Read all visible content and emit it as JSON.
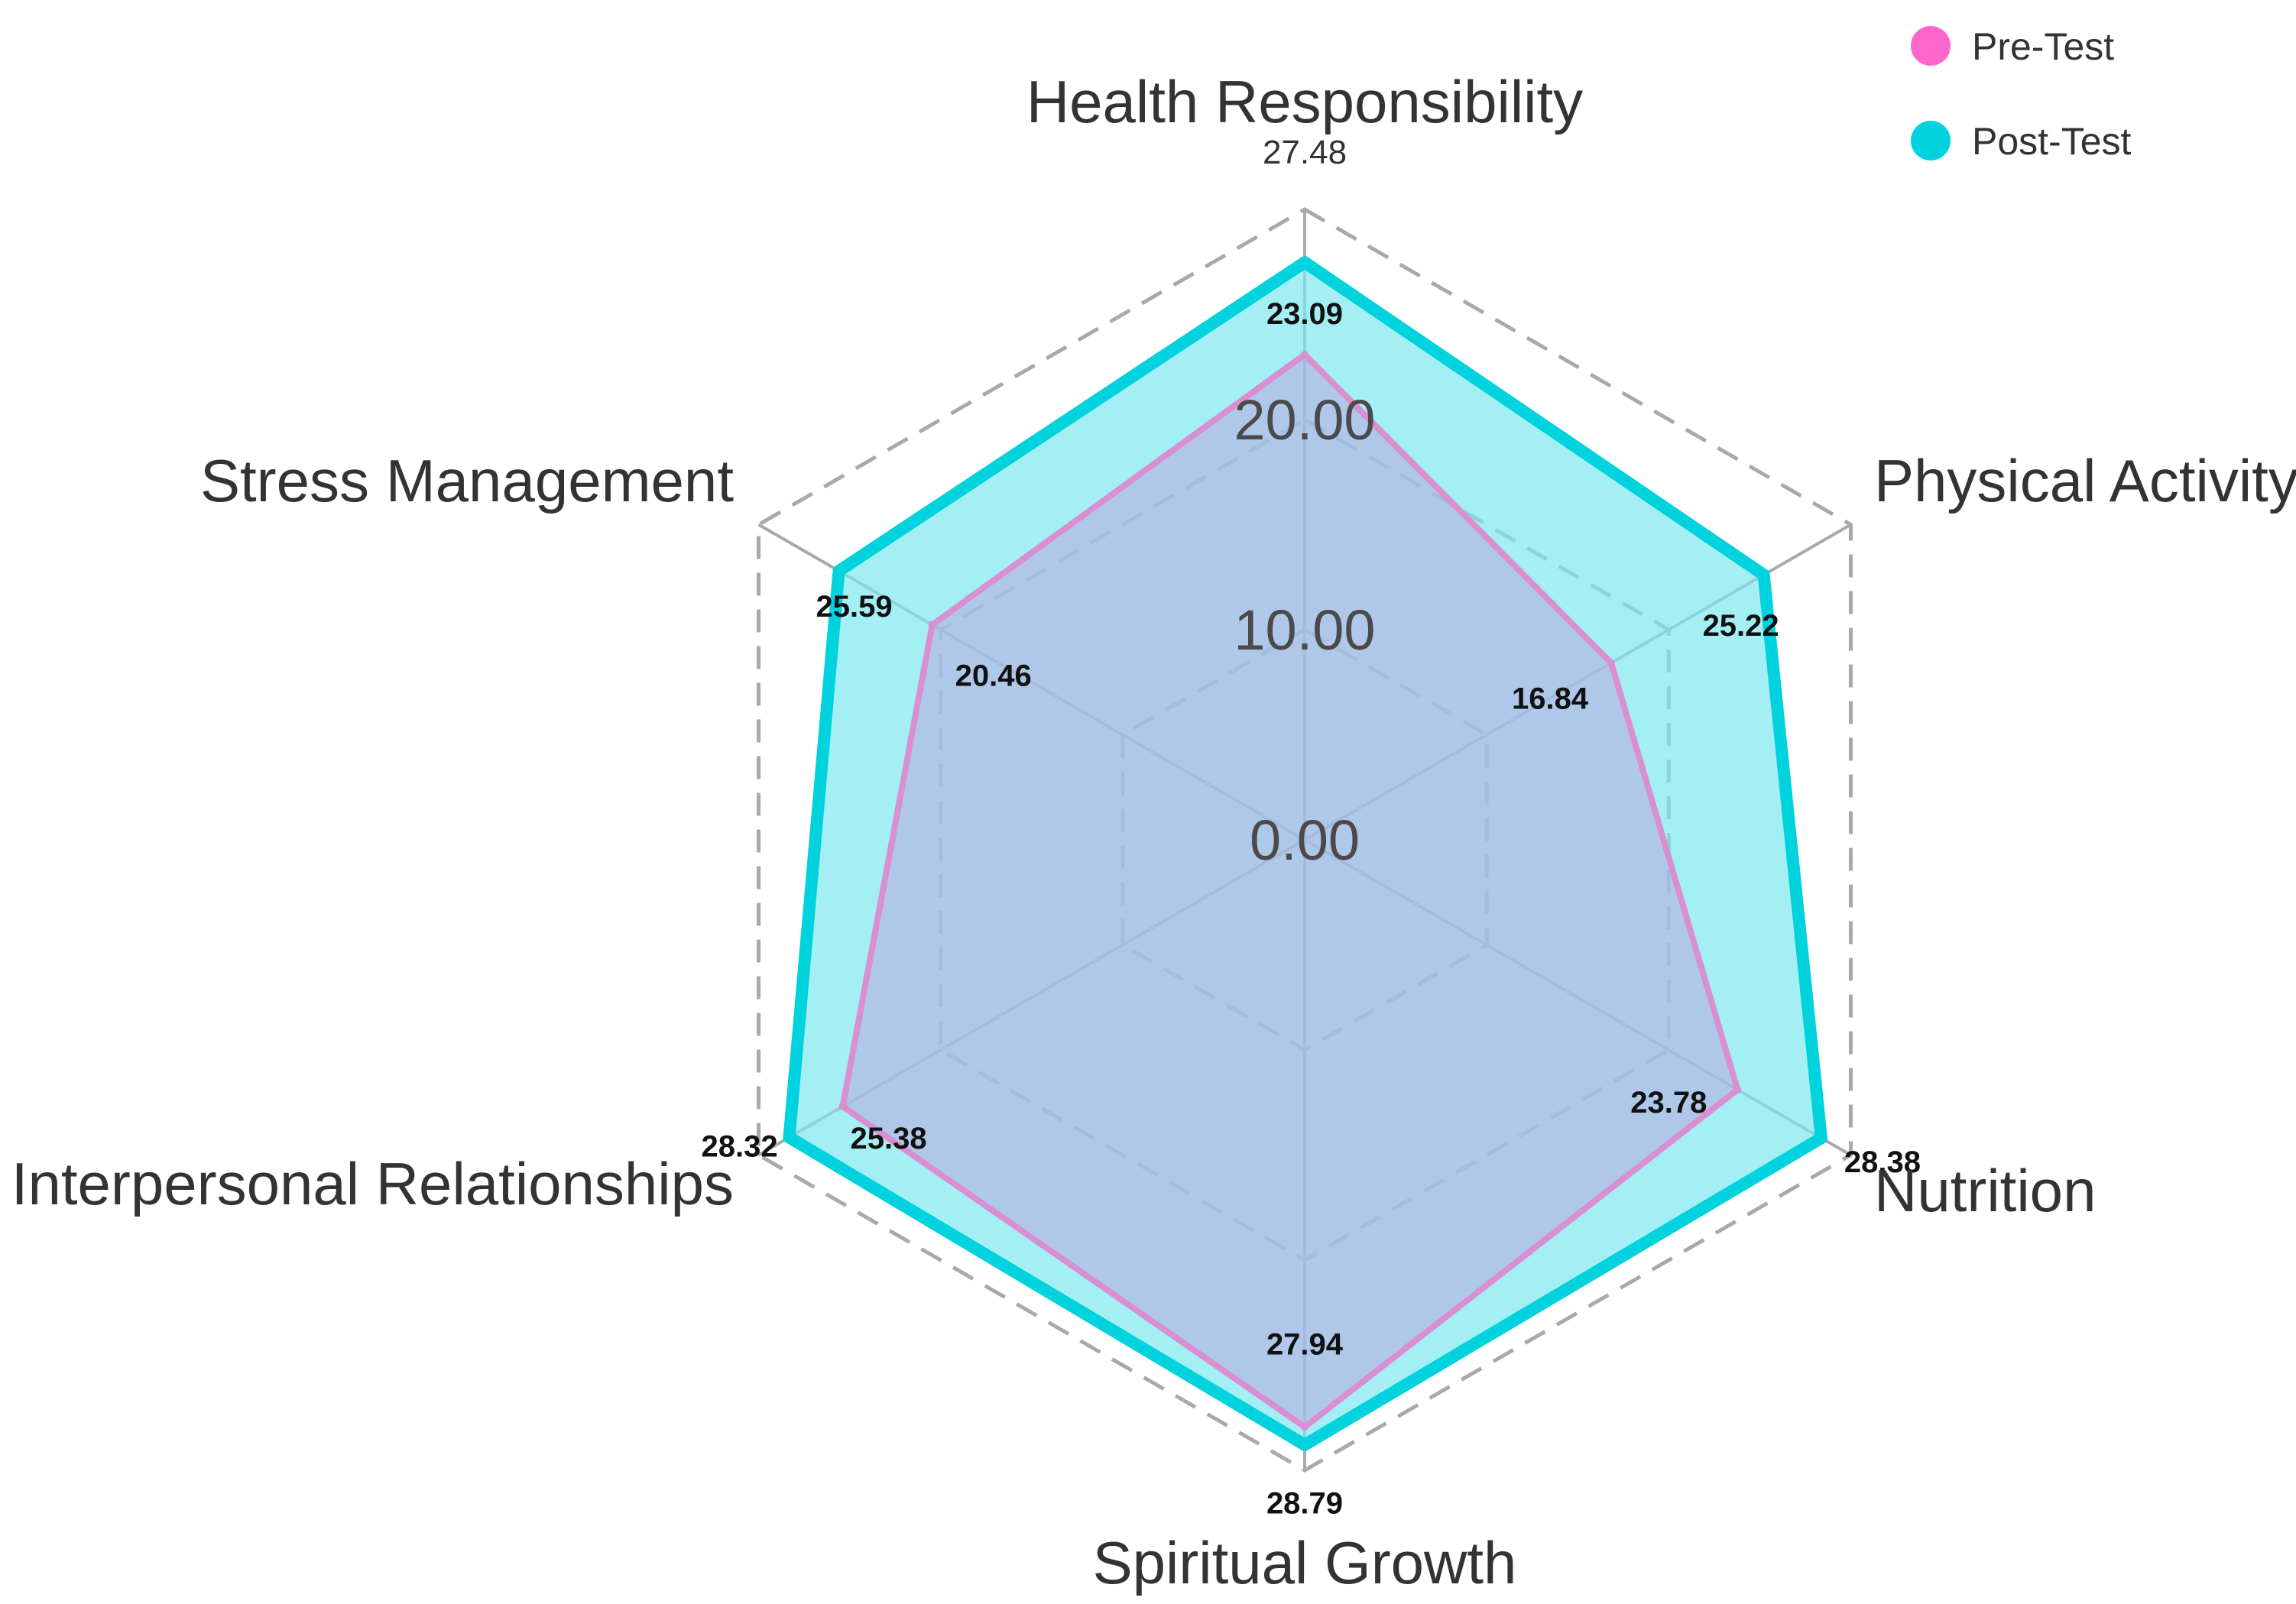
{
  "chart_data": {
    "type": "radar",
    "axes": [
      "Health Responsibility",
      "Physical Activity",
      "Nutrition",
      "Spiritual Growth",
      "Interpersonal Relationships",
      "Stress Management"
    ],
    "rmax": 30,
    "ticks": [
      0,
      10,
      20
    ],
    "tick_labels": [
      "0.00",
      "10.00",
      "20.00"
    ],
    "max_label": "27.48",
    "series": [
      {
        "name": "Pre-Test",
        "color": "#ff66cc",
        "line_color": "#d98fd2",
        "fill_color": "#b8a8e2",
        "values": [
          23.09,
          16.84,
          23.78,
          27.94,
          25.38,
          20.46
        ],
        "labels": [
          "23.09",
          "16.84",
          "23.78",
          "27.94",
          "25.38",
          "20.46"
        ]
      },
      {
        "name": "Post-Test",
        "color": "#00d2de",
        "line_color": "#00d2de",
        "fill_color": "#7ee8ee",
        "values": [
          27.48,
          25.22,
          28.38,
          28.79,
          28.32,
          25.59
        ],
        "labels": [
          "",
          "25.22",
          "28.38",
          "28.79",
          "28.32",
          "25.59"
        ]
      }
    ],
    "legend_position": "top-right",
    "grid": true
  }
}
